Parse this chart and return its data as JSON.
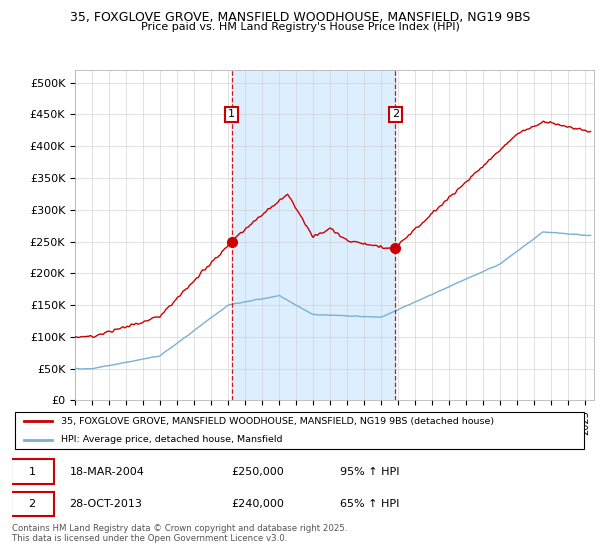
{
  "title_line1": "35, FOXGLOVE GROVE, MANSFIELD WOODHOUSE, MANSFIELD, NG19 9BS",
  "title_line2": "Price paid vs. HM Land Registry's House Price Index (HPI)",
  "ylabel_ticks": [
    "£0",
    "£50K",
    "£100K",
    "£150K",
    "£200K",
    "£250K",
    "£300K",
    "£350K",
    "£400K",
    "£450K",
    "£500K"
  ],
  "ytick_values": [
    0,
    50000,
    100000,
    150000,
    200000,
    250000,
    300000,
    350000,
    400000,
    450000,
    500000
  ],
  "ylim": [
    0,
    520000
  ],
  "xlim_start": 1995.0,
  "xlim_end": 2025.5,
  "red_line_color": "#cc0000",
  "blue_line_color": "#7ab0d4",
  "shaded_color": "#ddeeff",
  "marker1_x": 2004.21,
  "marker1_y": 250000,
  "marker2_x": 2013.82,
  "marker2_y": 240000,
  "legend_label_red": "35, FOXGLOVE GROVE, MANSFIELD WOODHOUSE, MANSFIELD, NG19 9BS (detached house)",
  "legend_label_blue": "HPI: Average price, detached house, Mansfield",
  "table_row1": [
    "1",
    "18-MAR-2004",
    "£250,000",
    "95% ↑ HPI"
  ],
  "table_row2": [
    "2",
    "28-OCT-2013",
    "£240,000",
    "65% ↑ HPI"
  ],
  "footer_text": "Contains HM Land Registry data © Crown copyright and database right 2025.\nThis data is licensed under the Open Government Licence v3.0.",
  "background_color": "#ffffff",
  "grid_color": "#cccccc"
}
